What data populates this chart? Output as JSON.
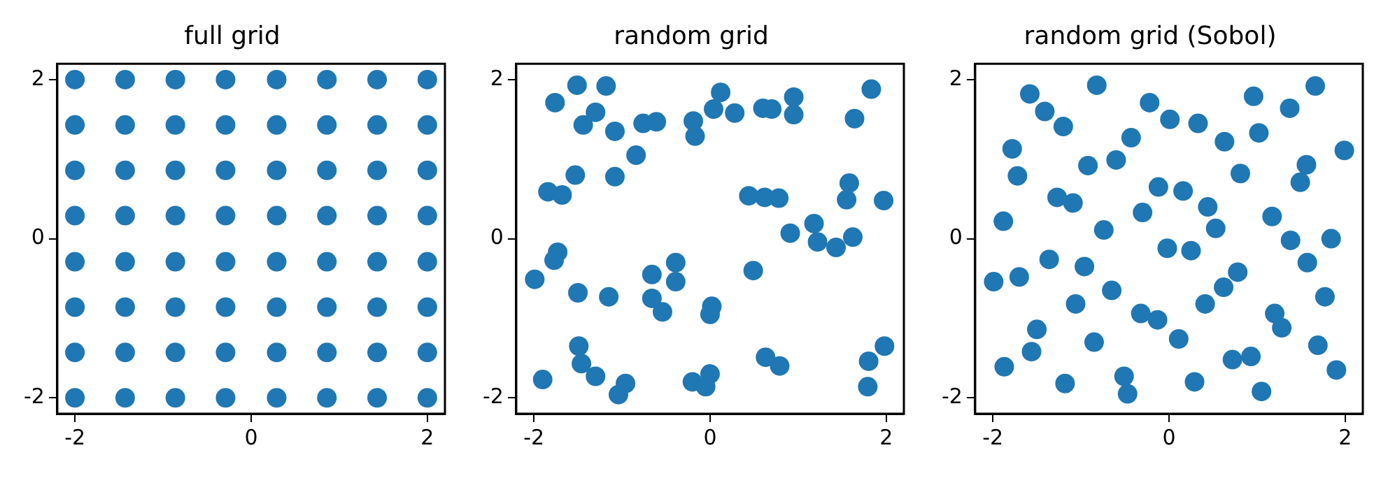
{
  "chart_data": [
    {
      "type": "scatter",
      "title": "full grid",
      "xlim": [
        -2.2,
        2.2
      ],
      "ylim": [
        -2.2,
        2.2
      ],
      "xticks": [
        -2,
        0,
        2
      ],
      "yticks": [
        -2,
        0,
        2
      ],
      "marker": "circle",
      "series": [
        {
          "color": "#1f77b4",
          "x": [
            -2,
            -2,
            -2,
            -2,
            -2,
            -2,
            -2,
            -2,
            -1.43,
            -1.43,
            -1.43,
            -1.43,
            -1.43,
            -1.43,
            -1.43,
            -1.43,
            -0.86,
            -0.86,
            -0.86,
            -0.86,
            -0.86,
            -0.86,
            -0.86,
            -0.86,
            -0.29,
            -0.29,
            -0.29,
            -0.29,
            -0.29,
            -0.29,
            -0.29,
            -0.29,
            0.29,
            0.29,
            0.29,
            0.29,
            0.29,
            0.29,
            0.29,
            0.29,
            0.86,
            0.86,
            0.86,
            0.86,
            0.86,
            0.86,
            0.86,
            0.86,
            1.43,
            1.43,
            1.43,
            1.43,
            1.43,
            1.43,
            1.43,
            1.43,
            2,
            2,
            2,
            2,
            2,
            2,
            2,
            2
          ],
          "values": [
            -2,
            -1.43,
            -0.86,
            -0.29,
            0.29,
            0.86,
            1.43,
            2,
            -2,
            -1.43,
            -0.86,
            -0.29,
            0.29,
            0.86,
            1.43,
            2,
            -2,
            -1.43,
            -0.86,
            -0.29,
            0.29,
            0.86,
            1.43,
            2,
            -2,
            -1.43,
            -0.86,
            -0.29,
            0.29,
            0.86,
            1.43,
            2,
            -2,
            -1.43,
            -0.86,
            -0.29,
            0.29,
            0.86,
            1.43,
            2,
            -2,
            -1.43,
            -0.86,
            -0.29,
            0.29,
            0.86,
            1.43,
            2,
            -2,
            -1.43,
            -0.86,
            -0.29,
            0.29,
            0.86,
            1.43,
            2,
            -2,
            -1.43,
            -0.86,
            -0.29,
            0.29,
            0.86,
            1.43,
            2
          ]
        }
      ]
    },
    {
      "type": "scatter",
      "title": "random grid",
      "xlim": [
        -2.2,
        2.2
      ],
      "ylim": [
        -2.2,
        2.2
      ],
      "xticks": [
        -2,
        0,
        2
      ],
      "yticks": [
        -2,
        0,
        2
      ],
      "marker": "circle",
      "series": [
        {
          "color": "#1f77b4",
          "x": [
            -1.51,
            -1.18,
            -1.76,
            -1.3,
            -1.44,
            -1.08,
            -0.76,
            -0.61,
            -0.19,
            -0.17,
            0.12,
            0.04,
            0.28,
            0.6,
            0.7,
            0.95,
            0.95,
            1.83,
            1.64,
            -0.84,
            -1.53,
            -1.08,
            -1.84,
            -1.68,
            0.44,
            0.62,
            0.78,
            1.58,
            1.55,
            1.97,
            1.18,
            0.91,
            1.22,
            1.43,
            1.62,
            -1.73,
            -1.77,
            -1.99,
            -0.39,
            -0.66,
            -0.39,
            0.49,
            -1.5,
            -1.15,
            -0.66,
            -0.54,
            0.02,
            0,
            -1.49,
            -1.46,
            -1.3,
            -1.9,
            -0.96,
            -1.04,
            -0.2,
            0,
            -0.05,
            0.63,
            0.79,
            1.8,
            1.98,
            1.79
          ],
          "values": [
            1.93,
            1.92,
            1.71,
            1.59,
            1.43,
            1.35,
            1.45,
            1.47,
            1.48,
            1.29,
            1.84,
            1.63,
            1.58,
            1.64,
            1.63,
            1.78,
            1.56,
            1.88,
            1.51,
            1.05,
            0.8,
            0.78,
            0.59,
            0.55,
            0.54,
            0.52,
            0.51,
            0.7,
            0.49,
            0.48,
            0.19,
            0.07,
            -0.04,
            -0.11,
            0.02,
            -0.17,
            -0.27,
            -0.51,
            -0.3,
            -0.45,
            -0.54,
            -0.4,
            -0.68,
            -0.73,
            -0.75,
            -0.92,
            -0.85,
            -0.95,
            -1.35,
            -1.57,
            -1.73,
            -1.77,
            -1.82,
            -1.96,
            -1.8,
            -1.7,
            -1.86,
            -1.49,
            -1.6,
            -1.54,
            -1.35,
            -1.86
          ]
        }
      ]
    },
    {
      "type": "scatter",
      "title": "random grid (Sobol)",
      "xlim": [
        -2.2,
        2.2
      ],
      "ylim": [
        -2.2,
        2.2
      ],
      "xticks": [
        -2,
        0,
        2
      ],
      "yticks": [
        -2,
        0,
        2
      ],
      "marker": "circle",
      "series": [
        {
          "color": "#1f77b4",
          "x": [
            -0.82,
            -1.58,
            -1.41,
            -1.2,
            -0.22,
            0.01,
            0.33,
            0.96,
            1.37,
            1.66,
            0.63,
            1.02,
            -0.43,
            -1.78,
            1.99,
            -1.72,
            -0.92,
            -0.6,
            1.56,
            1.49,
            0.81,
            -1.27,
            -1.09,
            -0.12,
            0.16,
            0.44,
            -0.3,
            -1.88,
            -0.74,
            0.53,
            1.17,
            1.38,
            1.84,
            -0.02,
            0.25,
            -1.36,
            -0.96,
            -1.7,
            -1.99,
            1.57,
            0.78,
            0.62,
            -0.65,
            -1.06,
            -0.32,
            -0.13,
            0.41,
            1.77,
            1.2,
            1.28,
            -1.5,
            -1.56,
            -0.85,
            0.11,
            1.69,
            -1.87,
            -1.18,
            -0.51,
            -0.47,
            0.29,
            0.72,
            0.93,
            1.05,
            1.9
          ],
          "values": [
            1.93,
            1.82,
            1.6,
            1.41,
            1.71,
            1.5,
            1.45,
            1.79,
            1.64,
            1.92,
            1.22,
            1.33,
            1.27,
            1.13,
            1.11,
            0.79,
            0.92,
            0.99,
            0.93,
            0.71,
            0.82,
            0.52,
            0.45,
            0.65,
            0.6,
            0.4,
            0.33,
            0.22,
            0.11,
            0.13,
            0.28,
            -0.02,
            0,
            -0.12,
            -0.15,
            -0.26,
            -0.35,
            -0.48,
            -0.54,
            -0.3,
            -0.42,
            -0.61,
            -0.65,
            -0.82,
            -0.94,
            -1.02,
            -0.82,
            -0.73,
            -0.94,
            -1.12,
            -1.14,
            -1.42,
            -1.3,
            -1.26,
            -1.34,
            -1.61,
            -1.82,
            -1.73,
            -1.95,
            -1.8,
            -1.52,
            -1.48,
            -1.92,
            -1.65
          ]
        }
      ]
    }
  ]
}
